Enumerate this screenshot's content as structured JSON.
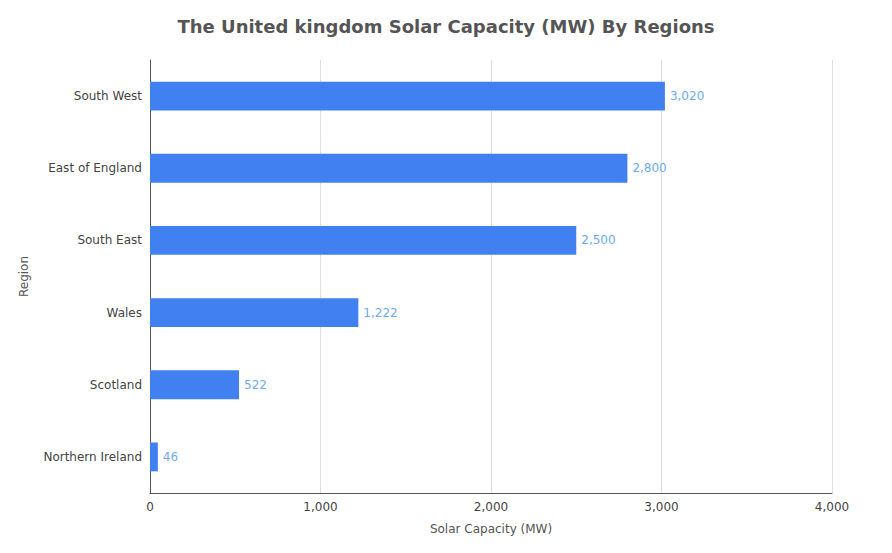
{
  "chart_data": {
    "type": "bar",
    "orientation": "horizontal",
    "title": "The United kingdom Solar Capacity (MW) By Regions",
    "xlabel": "Solar Capacity (MW)",
    "ylabel": "Region",
    "categories": [
      "Northern Ireland",
      "Scotland",
      "Wales",
      "South East",
      "East of England",
      "South West"
    ],
    "values": [
      46,
      522,
      1222,
      2500,
      2800,
      3020
    ],
    "value_labels": [
      "46",
      "522",
      "1,222",
      "2,500",
      "2,800",
      "3,020"
    ],
    "data_labels": true,
    "color": "#4080f0",
    "xlim": [
      0,
      4000
    ],
    "xticks": [
      0,
      {
        "value": 1000,
        "label": "1,000"
      },
      {
        "value": 2000,
        "label": "2,000"
      },
      {
        "value": 3000,
        "label": "3,000"
      },
      {
        "value": 4000,
        "label": "4,000"
      }
    ],
    "grid": true
  }
}
